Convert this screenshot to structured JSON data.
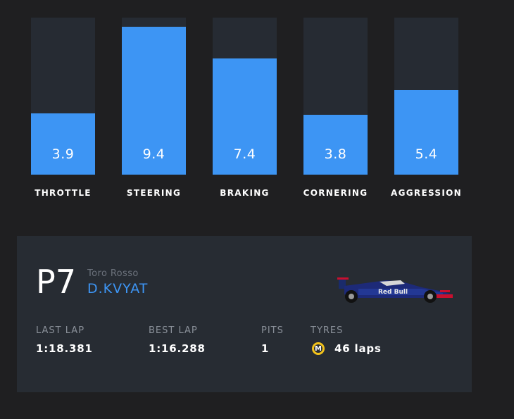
{
  "bars": [
    {
      "label": "THROTTLE",
      "value": 3.9
    },
    {
      "label": "STEERING",
      "value": 9.4
    },
    {
      "label": "BRAKING",
      "value": 7.4
    },
    {
      "label": "CORNERING",
      "value": 3.8
    },
    {
      "label": "AGGRESSION",
      "value": 5.4
    }
  ],
  "bars_max": 10,
  "colors": {
    "accent": "#3d95f4",
    "track": "#262b33",
    "card": "#272c33",
    "tyre_medium": "#f2c21b"
  },
  "driver": {
    "position": "P7",
    "team": "Toro Rosso",
    "name": "D.KVYAT"
  },
  "stats": {
    "last_lap_label": "LAST LAP",
    "last_lap_value": "1:18.381",
    "best_lap_label": "BEST LAP",
    "best_lap_value": "1:16.288",
    "pits_label": "PITS",
    "pits_value": "1",
    "tyres_label": "TYRES",
    "tyre_compound_letter": "M",
    "tyres_value": "46 laps"
  },
  "car": {
    "icon": "f1-car-icon",
    "livery_text": "Red Bull"
  }
}
